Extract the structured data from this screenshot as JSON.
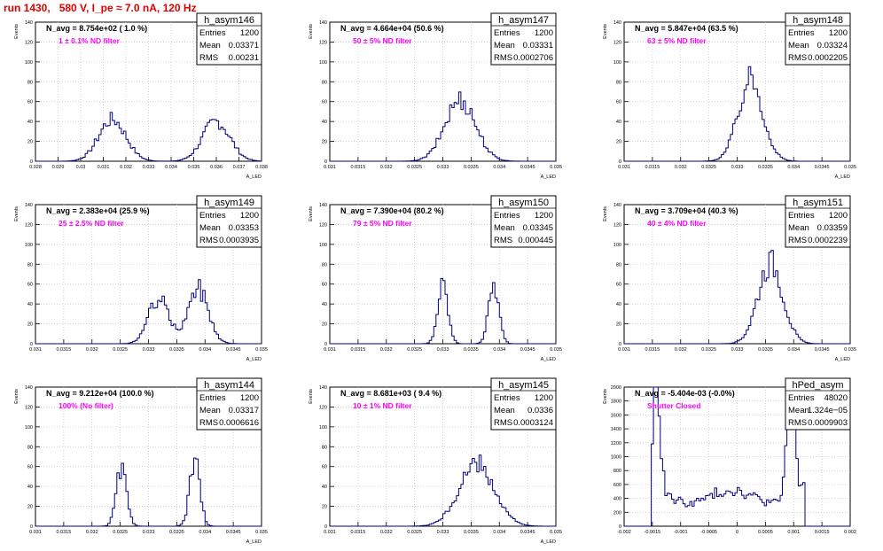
{
  "title": "run 1430,   580 V, I_pe ≈ 7.0 nA, 120 Hz",
  "colors": {
    "title": "#e00000",
    "histogram": "#000080",
    "label": "#ff00ff",
    "grid": "#c8c8c8"
  },
  "chart_data": [
    {
      "type": "bar",
      "name": "h_asym146",
      "navg": "N_avg = 8.754e+02 ( 1.0 %)",
      "label": "1 ± 0.1% ND filter",
      "stats": {
        "entries_label": "Entries",
        "entries": "1200",
        "mean_label": "Mean",
        "mean": "0.03371",
        "rms_label": "RMS",
        "rms": "0.00231"
      },
      "ylabel": "Events",
      "xlabel": "A_LED",
      "xlim": [
        0.028,
        0.038
      ],
      "ylim": [
        0,
        140
      ],
      "xticks": [
        "0.028",
        "0.029",
        "0.03",
        "0.031",
        "0.032",
        "0.033",
        "0.034",
        "0.035",
        "0.036",
        "0.037",
        "0.038"
      ],
      "yticks": [
        "0",
        "20",
        "40",
        "60",
        "80",
        "100",
        "120",
        "140"
      ],
      "peaks": [
        [
          0.0314,
          0.0006,
          42
        ],
        [
          0.036,
          0.0006,
          40
        ]
      ]
    },
    {
      "type": "bar",
      "name": "h_asym147",
      "navg": "N_avg = 4.664e+04 (50.6 %)",
      "label": "50 ± 5% ND filter",
      "stats": {
        "entries_label": "Entries",
        "entries": "1200",
        "mean_label": "Mean",
        "mean": "0.03331",
        "rms_label": "RMS",
        "rms": "0.0002706"
      },
      "ylabel": "Events",
      "xlabel": "A_LED",
      "xlim": [
        0.031,
        0.035
      ],
      "ylim": [
        0,
        140
      ],
      "xticks": [
        "0.031",
        "0.0315",
        "0.032",
        "0.0325",
        "0.033",
        "0.0335",
        "0.034",
        "0.0345",
        "0.035"
      ],
      "yticks": [
        "0",
        "20",
        "40",
        "60",
        "80",
        "100",
        "120",
        "140"
      ],
      "peaks": [
        [
          0.03331,
          0.00027,
          62
        ]
      ]
    },
    {
      "type": "bar",
      "name": "h_asym148",
      "navg": "N_avg = 5.847e+04 (63.5 %)",
      "label": "63 ± 5% ND filter",
      "stats": {
        "entries_label": "Entries",
        "entries": "1200",
        "mean_label": "Mean",
        "mean": "0.03324",
        "rms_label": "RMS",
        "rms": "0.0002205"
      },
      "ylabel": "Events",
      "xlabel": "A_LED",
      "xlim": [
        0.031,
        0.035
      ],
      "ylim": [
        0,
        140
      ],
      "xticks": [
        "0.031",
        "0.0315",
        "0.032",
        "0.0325",
        "0.033",
        "0.0335",
        "0.034",
        "0.0345",
        "0.035"
      ],
      "yticks": [
        "0",
        "20",
        "40",
        "60",
        "80",
        "100",
        "120",
        "140"
      ],
      "peaks": [
        [
          0.03324,
          0.00022,
          82
        ]
      ]
    },
    {
      "type": "bar",
      "name": "h_asym149",
      "navg": "N_avg = 2.383e+04 (25.9 %)",
      "label": "25 ± 2.5% ND filter",
      "stats": {
        "entries_label": "Entries",
        "entries": "1200",
        "mean_label": "Mean",
        "mean": "0.03353",
        "rms_label": "RMS",
        "rms": "0.0003935"
      },
      "ylabel": "Events",
      "xlabel": "A_LED",
      "xlim": [
        0.031,
        0.035
      ],
      "ylim": [
        0,
        140
      ],
      "xticks": [
        "0.031",
        "0.0315",
        "0.032",
        "0.0325",
        "0.033",
        "0.0335",
        "0.034",
        "0.0345",
        "0.035"
      ],
      "yticks": [
        "0",
        "20",
        "40",
        "60",
        "80",
        "100",
        "120",
        "140"
      ],
      "peaks": [
        [
          0.03318,
          0.00018,
          45
        ],
        [
          0.03388,
          0.00018,
          55
        ]
      ]
    },
    {
      "type": "bar",
      "name": "h_asym150",
      "navg": "N_avg = 7.390e+04 (80.2 %)",
      "label": "79 ± 5% ND filter",
      "stats": {
        "entries_label": "Entries",
        "entries": "1200",
        "mean_label": "Mean",
        "mean": "0.03345",
        "rms_label": "RMS",
        "rms": "0.000445"
      },
      "ylabel": "Events",
      "xlabel": "A_LED",
      "xlim": [
        0.031,
        0.035
      ],
      "ylim": [
        0,
        140
      ],
      "xticks": [
        "0.031",
        "0.0315",
        "0.032",
        "0.0325",
        "0.033",
        "0.0335",
        "0.034",
        "0.0345",
        "0.035"
      ],
      "yticks": [
        "0",
        "20",
        "40",
        "60",
        "80",
        "100",
        "120",
        "140"
      ],
      "peaks": [
        [
          0.033,
          9e-05,
          60
        ],
        [
          0.0339,
          9e-05,
          60
        ]
      ]
    },
    {
      "type": "bar",
      "name": "h_asym151",
      "navg": "N_avg = 3.709e+04 (40.3 %)",
      "label": "40 ± 4% ND filter",
      "stats": {
        "entries_label": "Entries",
        "entries": "1200",
        "mean_label": "Mean",
        "mean": "0.03359",
        "rms_label": "RMS",
        "rms": "0.0002239"
      },
      "ylabel": "Events",
      "xlabel": "A_LED",
      "xlim": [
        0.031,
        0.035
      ],
      "ylim": [
        0,
        140
      ],
      "xticks": [
        "0.031",
        "0.0315",
        "0.032",
        "0.0325",
        "0.033",
        "0.0335",
        "0.034",
        "0.0345",
        "0.035"
      ],
      "yticks": [
        "0",
        "20",
        "40",
        "60",
        "80",
        "100",
        "120",
        "140"
      ],
      "peaks": [
        [
          0.03359,
          0.00022,
          82
        ]
      ]
    },
    {
      "type": "bar",
      "name": "h_asym144",
      "navg": "N_avg = 9.212e+04 (100.0 %)",
      "label": "100% (No filter)",
      "stats": {
        "entries_label": "Entries",
        "entries": "1200",
        "mean_label": "Mean",
        "mean": "0.03317",
        "rms_label": "RMS",
        "rms": "0.0006616"
      },
      "ylabel": "Events",
      "xlabel": "A_LED",
      "xlim": [
        0.031,
        0.035
      ],
      "ylim": [
        0,
        140
      ],
      "xticks": [
        "0.031",
        "0.0315",
        "0.032",
        "0.0325",
        "0.033",
        "0.0335",
        "0.034",
        "0.0345",
        "0.035"
      ],
      "yticks": [
        "0",
        "20",
        "40",
        "60",
        "80",
        "100",
        "120",
        "140"
      ],
      "peaks": [
        [
          0.03252,
          9e-05,
          58
        ],
        [
          0.03382,
          9e-05,
          65
        ]
      ]
    },
    {
      "type": "bar",
      "name": "h_asym145",
      "navg": "N_avg = 8.681e+03 ( 9.4 %)",
      "label": "10 ± 1% ND filter",
      "stats": {
        "entries_label": "Entries",
        "entries": "1200",
        "mean_label": "Mean",
        "mean": "0.0336",
        "rms_label": "RMS",
        "rms": "0.0003124"
      },
      "ylabel": "Events",
      "xlabel": "A_LED",
      "xlim": [
        0.031,
        0.035
      ],
      "ylim": [
        0,
        140
      ],
      "xticks": [
        "0.031",
        "0.0315",
        "0.032",
        "0.0325",
        "0.033",
        "0.0335",
        "0.034",
        "0.0345",
        "0.035"
      ],
      "yticks": [
        "0",
        "20",
        "40",
        "60",
        "80",
        "100",
        "120",
        "140"
      ],
      "peaks": [
        [
          0.0336,
          0.00031,
          62
        ]
      ]
    },
    {
      "type": "bar",
      "name": "hPed_asym",
      "navg": "N_avg = -5.404e-03 (-0.0%)",
      "label": "Shutter Closed",
      "stats": {
        "entries_label": "Entries",
        "entries": "48020",
        "mean_label": "Mean",
        "mean": "1.324e−05",
        "rms_label": "RMS",
        "rms": "0.0009903"
      },
      "ylabel": "Events",
      "xlabel": "",
      "xlim": [
        -0.002,
        0.002
      ],
      "ylim": [
        0,
        2000
      ],
      "xticks": [
        "-0.002",
        "-0.0015",
        "-0.001",
        "-0.0005",
        "0",
        "0.0005",
        "0.001",
        "0.0015",
        "0.002"
      ],
      "yticks": [
        "0",
        "200",
        "400",
        "600",
        "800",
        "1000",
        "1200",
        "1400",
        "1600",
        "1800",
        "2000"
      ],
      "peaks": [
        [
          -0.00143,
          7e-05,
          1500
        ],
        [
          0.00095,
          7e-05,
          1800
        ],
        [
          0.00128,
          6e-05,
          600
        ]
      ],
      "baseline": 480
    }
  ]
}
